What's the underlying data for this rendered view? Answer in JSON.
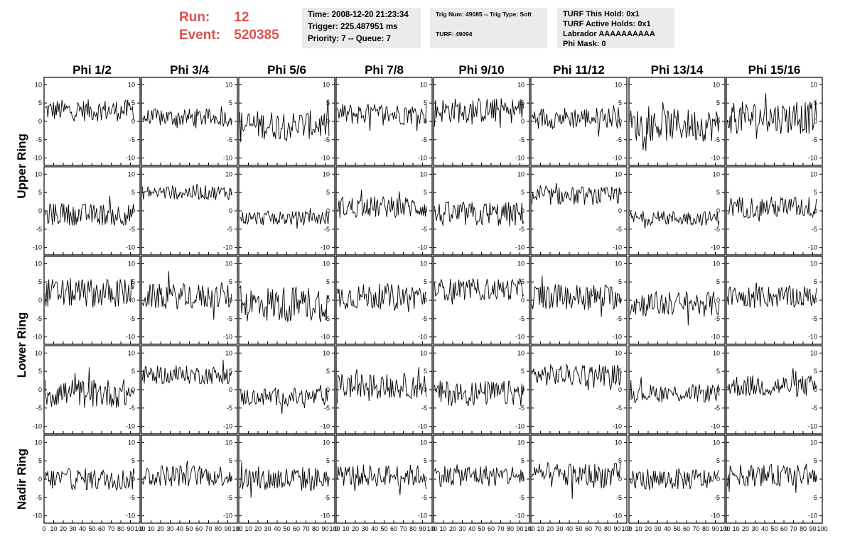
{
  "header": {
    "run_label": "Run:",
    "run_value": "12",
    "event_label": "Event:",
    "event_value": "520385",
    "time_line": "Time: 2008-12-20 21:23:34",
    "trigger_line": "Trigger: 225.487951 ms",
    "priority_line": "Priority: 7 -- Queue: 7",
    "trig_num_line": "Trig Num: 49085 -- Trig Type: Soft",
    "turf_line": "TURF: 49094",
    "turf_hold_line": "TURF This Hold: 0x1",
    "turf_active_line": "TURF Active Holds: 0x1",
    "labrador_line": "Labrador AAAAAAAAAA",
    "phi_mask_line": "Phi Mask: 0",
    "accent_color": "#d9534f",
    "box_color": "#ebebeb"
  },
  "chart_data": {
    "type": "line",
    "columns": [
      "Phi 1/2",
      "Phi 3/4",
      "Phi 5/6",
      "Phi 7/8",
      "Phi 9/10",
      "Phi 11/12",
      "Phi 13/14",
      "Phi 15/16"
    ],
    "rows": [
      "Upper Ring",
      "Lower Ring",
      "Nadir Ring"
    ],
    "sub_rows_per_ring": [
      2,
      2,
      1
    ],
    "xlim": [
      0,
      100
    ],
    "ylim": [
      -12,
      12
    ],
    "x_ticks": [
      0,
      10,
      20,
      30,
      40,
      50,
      60,
      70,
      80,
      90,
      100
    ],
    "x_tick_labels": [
      "0",
      "10",
      "20",
      "30",
      "40",
      "50",
      "60",
      "70",
      "80",
      "90",
      "100"
    ],
    "y_ticks": [
      -10,
      -5,
      0,
      5,
      10
    ],
    "y_tick_labels": [
      "-10",
      "-5",
      "0",
      "5",
      "10"
    ],
    "samples_per_trace": 96,
    "panel_offsets": [
      [
        3,
        1,
        -1,
        2,
        3,
        1,
        -1,
        1
      ],
      [
        -1,
        5,
        -2,
        1,
        -1,
        4,
        -2,
        1
      ],
      [
        2,
        1,
        -1,
        1,
        3,
        1,
        -1,
        1
      ],
      [
        -1,
        4,
        -2,
        1,
        -1,
        4,
        -1,
        1
      ],
      [
        0,
        1,
        0,
        1,
        1,
        1,
        0,
        1
      ]
    ],
    "panel_amplitudes": [
      [
        3,
        2.5,
        4,
        3,
        3.5,
        3,
        4.5,
        4.5
      ],
      [
        3,
        2,
        2,
        3,
        3.5,
        2.5,
        2,
        3
      ],
      [
        4,
        3.5,
        5,
        3.5,
        3,
        3.5,
        3.5,
        3
      ],
      [
        4,
        2.5,
        2.5,
        3.5,
        3.5,
        3,
        2.5,
        3
      ],
      [
        3,
        3,
        3.5,
        3,
        3,
        3.5,
        3,
        3
      ]
    ],
    "line_color": "#000000"
  }
}
